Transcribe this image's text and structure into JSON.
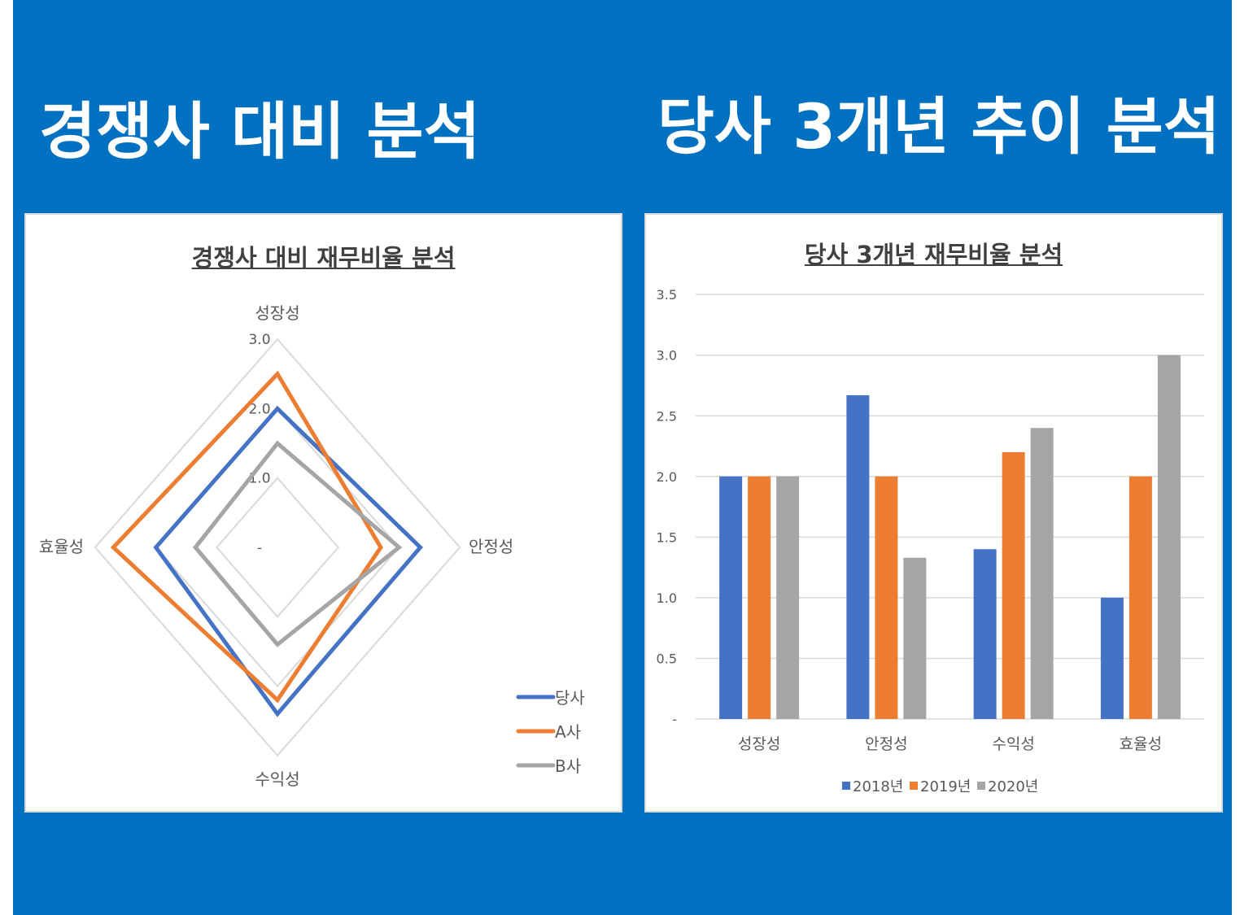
{
  "headings": {
    "left": "경쟁사 대비 분석",
    "right": "당사 3개년 추이 분석"
  },
  "chart_data": [
    {
      "type": "radar",
      "title": "경쟁사 대비 재무비율 분석",
      "categories": [
        "성장성",
        "안정성",
        "수익성",
        "효율성"
      ],
      "axis_ticks": [
        "-",
        "1.0",
        "2.0",
        "3.0"
      ],
      "range": [
        0,
        3
      ],
      "legend_position": "bottom-right",
      "series": [
        {
          "name": "당사",
          "color": "#4472C4",
          "values": [
            2.0,
            2.35,
            2.4,
            2.0
          ]
        },
        {
          "name": "A사",
          "color": "#ED7D31",
          "values": [
            2.5,
            1.7,
            2.2,
            2.7
          ]
        },
        {
          "name": "B사",
          "color": "#A5A5A5",
          "values": [
            1.5,
            2.0,
            1.4,
            1.35
          ]
        }
      ]
    },
    {
      "type": "bar",
      "title": "당사 3개년 재무비율 분석",
      "categories": [
        "성장성",
        "안정성",
        "수익성",
        "효율성"
      ],
      "ylim": [
        0,
        3.5
      ],
      "yticks": [
        "-",
        "0.5",
        "1.0",
        "1.5",
        "2.0",
        "2.5",
        "3.0",
        "3.5"
      ],
      "grid": true,
      "legend_position": "bottom",
      "series": [
        {
          "name": "2018년",
          "color": "#4472C4",
          "values": [
            2.0,
            2.67,
            1.4,
            1.0
          ]
        },
        {
          "name": "2019년",
          "color": "#ED7D31",
          "values": [
            2.0,
            2.0,
            2.2,
            2.0
          ]
        },
        {
          "name": "2020년",
          "color": "#A5A5A5",
          "values": [
            2.0,
            1.33,
            2.4,
            3.0
          ]
        }
      ]
    }
  ]
}
